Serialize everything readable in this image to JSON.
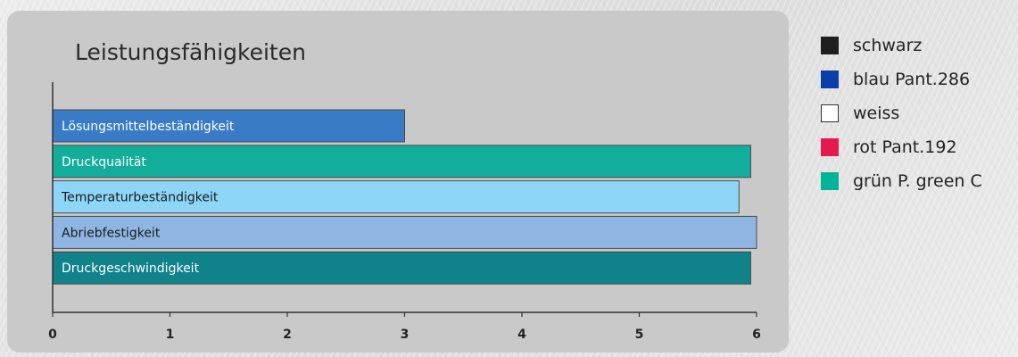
{
  "chart_data": {
    "type": "bar",
    "orientation": "horizontal",
    "title": "Leistungsfähigkeiten",
    "xlabel": "",
    "ylabel": "",
    "xlim": [
      0,
      6
    ],
    "x_ticks": [
      "0",
      "1",
      "2",
      "3",
      "4",
      "5",
      "6"
    ],
    "grid": false,
    "categories": [
      "Lösungsmittelbeständigkeit",
      "Druckqualität",
      "Temperaturbeständigkeit",
      "Abriebfestigkeit",
      "Druckgeschwindigkeit"
    ],
    "values": [
      3.0,
      5.95,
      5.85,
      6.0,
      5.95
    ],
    "bar_colors": [
      "#3a7bc8",
      "#13ae9b",
      "#8ed6f8",
      "#8fb6e2",
      "#10828a"
    ],
    "label_colors": [
      "#ffffff",
      "#ffffff",
      "#1a1a1a",
      "#1a1a1a",
      "#ffffff"
    ]
  },
  "legend": {
    "position": "right",
    "items": [
      {
        "label": "schwarz",
        "color": "#1e1e1e"
      },
      {
        "label": "blau Pant.286",
        "color": "#0b3ea8"
      },
      {
        "label": "weiss",
        "color": "#ffffff"
      },
      {
        "label": "rot Pant.192",
        "color": "#e6194e"
      },
      {
        "label": "grün P. green C",
        "color": "#00b49a"
      }
    ]
  }
}
